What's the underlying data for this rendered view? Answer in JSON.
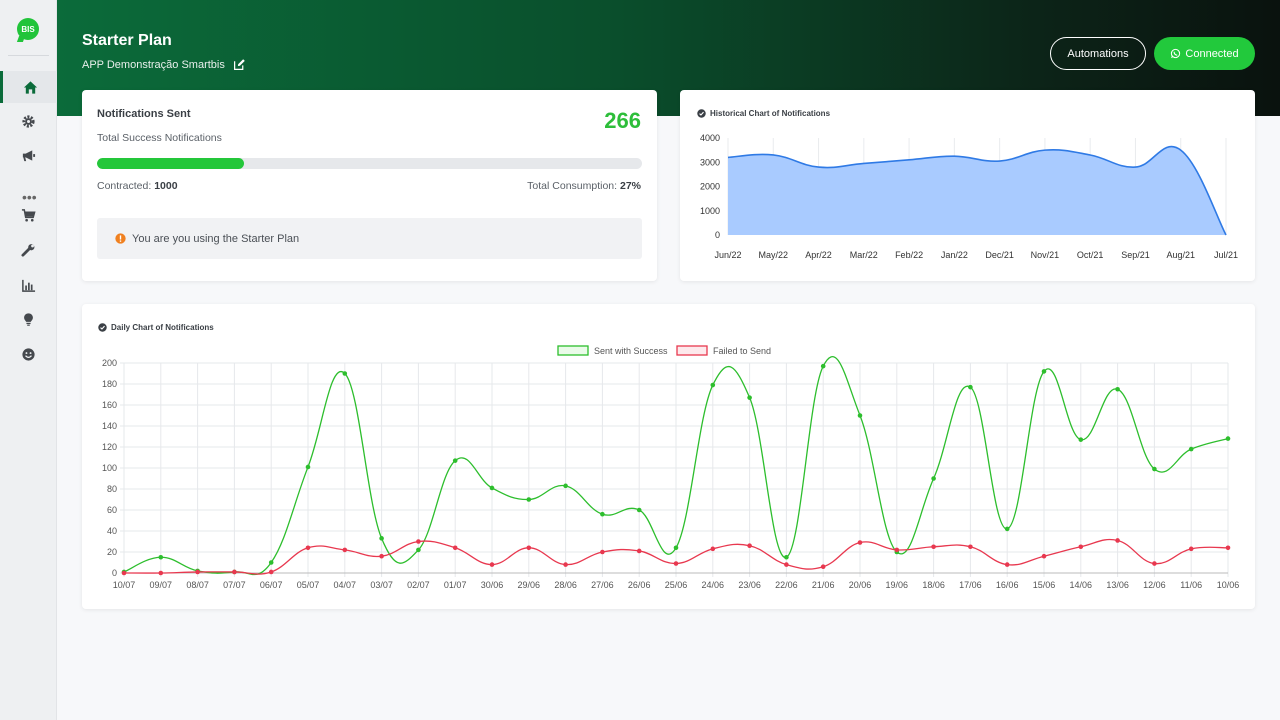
{
  "brand": {
    "logo_text": "BIS"
  },
  "sidebar": {
    "items": [
      {
        "name": "home",
        "icon": "home-icon",
        "active": true
      },
      {
        "name": "settings",
        "icon": "gear-icon"
      },
      {
        "name": "campaigns",
        "icon": "megaphone-icon"
      },
      {
        "name": "more",
        "icon": "more-icon"
      },
      {
        "name": "store",
        "icon": "cart-icon"
      },
      {
        "name": "tools",
        "icon": "wrench-icon"
      },
      {
        "name": "reports",
        "icon": "bar-chart-icon"
      },
      {
        "name": "ideas",
        "icon": "lightbulb-icon"
      },
      {
        "name": "feedback",
        "icon": "smile-icon"
      }
    ]
  },
  "header": {
    "title": "Starter Plan",
    "subtitle": "APP Demonstração Smartbis",
    "automations_label": "Automations",
    "connected_label": "Connected"
  },
  "notifications": {
    "heading": "Notifications Sent",
    "subheading": "Total Success Notifications",
    "count": "266",
    "contracted_label": "Contracted:",
    "contracted_value": "1000",
    "consumption_label": "Total Consumption:",
    "consumption_value": "27%",
    "progress_fraction": 0.27,
    "alert_text": "You are you using the Starter Plan"
  },
  "colors": {
    "accent_green": "#22c93c",
    "success_line": "#2dbe2d",
    "failed_line": "#e8384f",
    "area_fill": "#a9cbff",
    "area_line": "#2f7ae5",
    "alert_icon": "#f0801f"
  },
  "chart_data": [
    {
      "type": "area",
      "title": "Historical Chart of Notifications",
      "categories": [
        "Jun/22",
        "May/22",
        "Apr/22",
        "Mar/22",
        "Feb/22",
        "Jan/22",
        "Dec/21",
        "Nov/21",
        "Oct/21",
        "Sep/21",
        "Aug/21",
        "Jul/21"
      ],
      "values": [
        3200,
        3300,
        2800,
        2950,
        3100,
        3250,
        3050,
        3500,
        3300,
        2800,
        3500,
        0
      ],
      "ylim": [
        0,
        4000
      ],
      "yticks": [
        "4000",
        "3000",
        "2000",
        "1000",
        "0"
      ],
      "grid": "vertical"
    },
    {
      "type": "line",
      "title": "Daily Chart of Notifications",
      "legend": "top-center",
      "categories": [
        "10/07",
        "09/07",
        "08/07",
        "07/07",
        "06/07",
        "05/07",
        "04/07",
        "03/07",
        "02/07",
        "01/07",
        "30/06",
        "29/06",
        "28/06",
        "27/06",
        "26/06",
        "25/06",
        "24/06",
        "23/06",
        "22/06",
        "21/06",
        "20/06",
        "19/06",
        "18/06",
        "17/06",
        "16/06",
        "15/06",
        "14/06",
        "13/06",
        "12/06",
        "11/06",
        "10/06"
      ],
      "series": [
        {
          "name": "Sent with Success",
          "values": [
            1,
            15,
            2,
            1,
            10,
            101,
            190,
            33,
            22,
            107,
            81,
            70,
            83,
            56,
            60,
            24,
            179,
            167,
            15,
            197,
            150,
            20,
            90,
            177,
            42,
            192,
            127,
            175,
            99,
            118,
            128
          ]
        },
        {
          "name": "Failed to Send",
          "values": [
            0,
            0,
            1,
            1,
            1,
            24,
            22,
            16,
            30,
            24,
            8,
            24,
            8,
            20,
            21,
            9,
            23,
            26,
            8,
            6,
            29,
            22,
            25,
            25,
            8,
            16,
            25,
            31,
            9,
            23,
            24
          ]
        }
      ],
      "ylim": [
        0,
        200
      ],
      "yticks": [
        "200",
        "180",
        "160",
        "140",
        "120",
        "100",
        "80",
        "60",
        "40",
        "20",
        "0"
      ],
      "grid": "both"
    }
  ]
}
